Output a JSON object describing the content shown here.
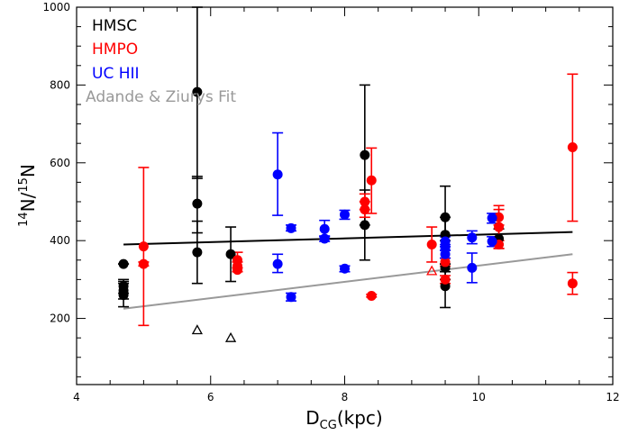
{
  "chart_data": {
    "type": "scatter",
    "xlabel_main": "D",
    "xlabel_sub": "CG",
    "xlabel_unit": "(kpc)",
    "ylabel_sup1": "14",
    "ylabel_mid": "N/",
    "ylabel_sup2": "15",
    "ylabel_end": "N",
    "xlim": [
      4,
      12
    ],
    "ylim": [
      30,
      1000
    ],
    "x_ticks": [
      4,
      6,
      8,
      10,
      12
    ],
    "y_ticks": [
      200,
      400,
      600,
      800,
      1000
    ],
    "legend": [
      {
        "name": "HMSC",
        "color": "#000000"
      },
      {
        "name": "HMPO",
        "color": "#ff0000"
      },
      {
        "name": "UC HII",
        "color": "#0000ff"
      },
      {
        "name": "Adande & Ziurys Fit",
        "color": "#999999"
      }
    ],
    "series": [
      {
        "name": "HMSC",
        "color": "#000000",
        "points": [
          {
            "x": 4.7,
            "y": 340,
            "lo": 340,
            "hi": 340
          },
          {
            "x": 4.7,
            "y": 283,
            "lo": 265,
            "hi": 300
          },
          {
            "x": 4.7,
            "y": 272,
            "lo": 250,
            "hi": 295
          },
          {
            "x": 4.7,
            "y": 260,
            "lo": 230,
            "hi": 290
          },
          {
            "x": 5.8,
            "y": 782,
            "lo": 560,
            "hi": 1000
          },
          {
            "x": 5.8,
            "y": 495,
            "lo": 420,
            "hi": 565
          },
          {
            "x": 5.8,
            "y": 370,
            "lo": 290,
            "hi": 450
          },
          {
            "x": 6.3,
            "y": 365,
            "lo": 295,
            "hi": 435
          },
          {
            "x": 8.3,
            "y": 620,
            "lo": 440,
            "hi": 800
          },
          {
            "x": 8.3,
            "y": 440,
            "lo": 350,
            "hi": 530
          },
          {
            "x": 9.5,
            "y": 415,
            "lo": 300,
            "hi": 540
          },
          {
            "x": 9.5,
            "y": 460,
            "lo": 400,
            "hi": 460
          },
          {
            "x": 9.5,
            "y": 330,
            "lo": 320,
            "hi": 340
          },
          {
            "x": 9.5,
            "y": 283,
            "lo": 228,
            "hi": 340
          },
          {
            "x": 10.3,
            "y": 405,
            "lo": 380,
            "hi": 430
          }
        ]
      },
      {
        "name": "HMPO",
        "color": "#ff0000",
        "points": [
          {
            "x": 5.0,
            "y": 385,
            "lo": 182,
            "hi": 588
          },
          {
            "x": 5.0,
            "y": 340,
            "lo": 335,
            "hi": 345
          },
          {
            "x": 6.4,
            "y": 350,
            "lo": 330,
            "hi": 370
          },
          {
            "x": 6.4,
            "y": 335,
            "lo": 320,
            "hi": 345
          },
          {
            "x": 6.4,
            "y": 325,
            "lo": 320,
            "hi": 330
          },
          {
            "x": 8.3,
            "y": 500,
            "lo": 480,
            "hi": 520
          },
          {
            "x": 8.3,
            "y": 480,
            "lo": 460,
            "hi": 500
          },
          {
            "x": 8.4,
            "y": 555,
            "lo": 470,
            "hi": 638
          },
          {
            "x": 8.4,
            "y": 258,
            "lo": 255,
            "hi": 262
          },
          {
            "x": 9.3,
            "y": 390,
            "lo": 345,
            "hi": 435
          },
          {
            "x": 9.5,
            "y": 345,
            "lo": 335,
            "hi": 355
          },
          {
            "x": 9.5,
            "y": 300,
            "lo": 290,
            "hi": 310
          },
          {
            "x": 10.3,
            "y": 460,
            "lo": 440,
            "hi": 480
          },
          {
            "x": 10.3,
            "y": 435,
            "lo": 380,
            "hi": 490
          },
          {
            "x": 10.3,
            "y": 390,
            "lo": 380,
            "hi": 400
          },
          {
            "x": 11.4,
            "y": 640,
            "lo": 450,
            "hi": 828
          },
          {
            "x": 11.4,
            "y": 290,
            "lo": 262,
            "hi": 318
          }
        ]
      },
      {
        "name": "UC HII",
        "color": "#0000ff",
        "points": [
          {
            "x": 7.0,
            "y": 570,
            "lo": 465,
            "hi": 677
          },
          {
            "x": 7.0,
            "y": 340,
            "lo": 318,
            "hi": 365
          },
          {
            "x": 7.2,
            "y": 432,
            "lo": 425,
            "hi": 440
          },
          {
            "x": 7.2,
            "y": 255,
            "lo": 245,
            "hi": 265
          },
          {
            "x": 7.7,
            "y": 430,
            "lo": 410,
            "hi": 452
          },
          {
            "x": 7.7,
            "y": 405,
            "lo": 398,
            "hi": 412
          },
          {
            "x": 8.0,
            "y": 467,
            "lo": 455,
            "hi": 478
          },
          {
            "x": 8.0,
            "y": 328,
            "lo": 320,
            "hi": 335
          },
          {
            "x": 9.5,
            "y": 398,
            "lo": 385,
            "hi": 410
          },
          {
            "x": 9.5,
            "y": 382,
            "lo": 375,
            "hi": 390
          },
          {
            "x": 9.5,
            "y": 365,
            "lo": 355,
            "hi": 375
          },
          {
            "x": 9.9,
            "y": 408,
            "lo": 392,
            "hi": 425
          },
          {
            "x": 9.9,
            "y": 330,
            "lo": 292,
            "hi": 368
          },
          {
            "x": 10.2,
            "y": 458,
            "lo": 445,
            "hi": 470
          },
          {
            "x": 10.2,
            "y": 398,
            "lo": 385,
            "hi": 410
          }
        ]
      }
    ],
    "triangles": [
      {
        "x": 5.8,
        "y": 170,
        "color": "#000000"
      },
      {
        "x": 6.3,
        "y": 150,
        "color": "#000000"
      },
      {
        "x": 9.3,
        "y": 322,
        "color": "#ff0000"
      }
    ],
    "fits": [
      {
        "name": "HMSC",
        "color": "#000000",
        "x": [
          4.7,
          11.4
        ],
        "y": [
          390,
          422
        ]
      },
      {
        "name": "Adande & Ziurys Fit",
        "color": "#999999",
        "x": [
          4.7,
          11.4
        ],
        "y": [
          225,
          365
        ]
      }
    ]
  }
}
